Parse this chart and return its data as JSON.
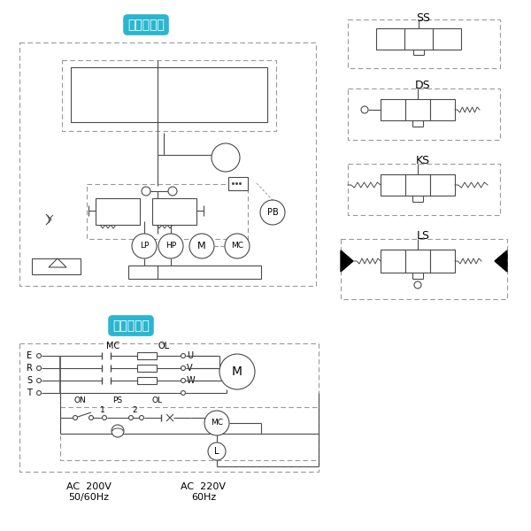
{
  "bg": "#ffffff",
  "lc": "#4a4a4a",
  "dc": "#999999",
  "cyan": "#29b6d0",
  "white": "#ffffff",
  "title_hyd": "油圧回路図",
  "title_elec": "電気回路図",
  "SS": "SS",
  "DS": "DS",
  "KS": "KS",
  "LS": "LS",
  "volt1_line1": "AC  200V",
  "volt1_line2": "50/60Hz",
  "volt2_line1": "AC  220V",
  "volt2_line2": "60Hz"
}
